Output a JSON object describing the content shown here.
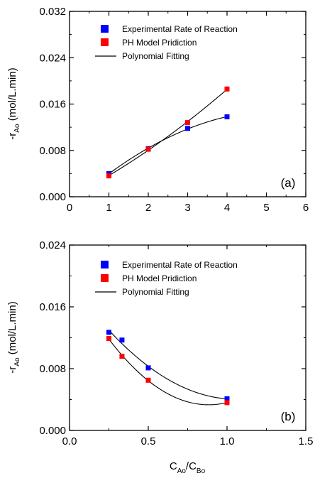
{
  "chart_data": [
    {
      "type": "scatter",
      "panel_label": "(a)",
      "xlim": [
        0,
        6
      ],
      "ylim": [
        0,
        0.032
      ],
      "x_ticks": [
        "0",
        "1",
        "2",
        "3",
        "4",
        "5",
        "6"
      ],
      "y_ticks": [
        "0.000",
        "0.008",
        "0.016",
        "0.024",
        "0.032"
      ],
      "ylabel": {
        "main": "-r",
        "sub": "Ao",
        "unit": " (mol/L.min)"
      },
      "xlabel": null,
      "legend_position": "top-left",
      "series": [
        {
          "name": "Experimental Rate of Reaction",
          "color": "#0000ff",
          "marker": "square",
          "x": [
            1,
            2,
            3,
            4
          ],
          "y": [
            0.004,
            0.0083,
            0.0118,
            0.0138
          ],
          "fit": {
            "name": "Polynomial Fitting",
            "type": "quadratic"
          }
        },
        {
          "name": "PH Model Pridiction",
          "color": "#ff0000",
          "marker": "square",
          "x": [
            1,
            2,
            3,
            4
          ],
          "y": [
            0.0036,
            0.0082,
            0.0128,
            0.0186
          ],
          "fit": {
            "name": "Polynomial Fitting",
            "type": "quadratic"
          }
        }
      ],
      "legend": [
        {
          "label": "Experimental Rate of Reaction",
          "kind": "square",
          "color": "#0000ff"
        },
        {
          "label": "PH Model Pridiction",
          "kind": "square",
          "color": "#ff0000"
        },
        {
          "label": "Polynomial Fitting",
          "kind": "line",
          "color": "#000000"
        }
      ]
    },
    {
      "type": "scatter",
      "panel_label": "(b)",
      "xlim": [
        0,
        1.5
      ],
      "ylim": [
        0,
        0.024
      ],
      "x_ticks": [
        "0.0",
        "0.5",
        "1.0",
        "1.5"
      ],
      "y_ticks": [
        "0.000",
        "0.008",
        "0.016",
        "0.024"
      ],
      "ylabel": {
        "main": "-r",
        "sub": "Ao",
        "unit": " (mol/L.min)"
      },
      "xlabel": {
        "main": "C",
        "sub": "Ao",
        "sep": "/C",
        "sub2": "Bo"
      },
      "legend_position": "top-left",
      "series": [
        {
          "name": "Experimental Rate of Reaction",
          "color": "#0000ff",
          "marker": "square",
          "x": [
            0.25,
            0.333,
            0.5,
            1.0
          ],
          "y": [
            0.0127,
            0.0117,
            0.0081,
            0.0041
          ],
          "fit": {
            "name": "Polynomial Fitting",
            "type": "quadratic"
          }
        },
        {
          "name": "PH Model Pridiction",
          "color": "#ff0000",
          "marker": "square",
          "x": [
            0.25,
            0.333,
            0.5,
            1.0
          ],
          "y": [
            0.0119,
            0.0096,
            0.0065,
            0.0036
          ],
          "fit": {
            "name": "Polynomial Fitting",
            "type": "quadratic"
          }
        }
      ],
      "legend": [
        {
          "label": "Experimental Rate of Reaction",
          "kind": "square",
          "color": "#0000ff"
        },
        {
          "label": "PH Model Pridiction",
          "kind": "square",
          "color": "#ff0000"
        },
        {
          "label": "Polynomial Fitting",
          "kind": "line",
          "color": "#000000"
        }
      ]
    }
  ]
}
